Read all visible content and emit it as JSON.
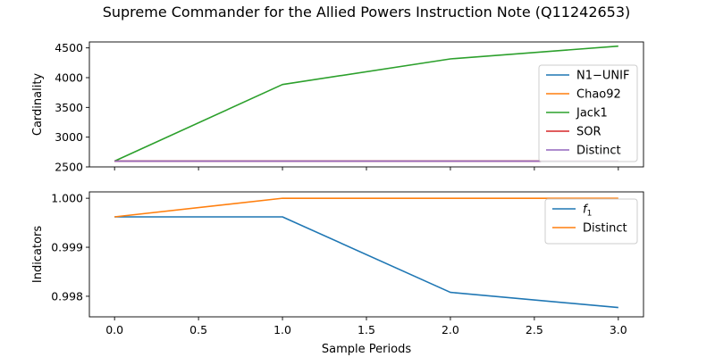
{
  "title": "Supreme Commander for the Allied Powers Instruction Note (Q11242653)",
  "chart_data": [
    {
      "type": "line",
      "ylabel": "Cardinality",
      "xlabel": "",
      "x": [
        0,
        1,
        2,
        3
      ],
      "xlim": [
        -0.15,
        3.15
      ],
      "ylim": [
        2500,
        4600
      ],
      "yticks": [
        2500,
        3000,
        3500,
        4000,
        4500
      ],
      "xticks": [
        0.0,
        0.5,
        1.0,
        1.5,
        2.0,
        2.5,
        3.0
      ],
      "show_xtick_labels": false,
      "legend_position": "center-right",
      "series": [
        {
          "name": "N1−UNIF",
          "color": "#1f77b4",
          "values": [
            2597,
            2597,
            2597,
            2597
          ]
        },
        {
          "name": "Chao92",
          "color": "#ff7f0e",
          "values": [
            2597,
            2597,
            2597,
            2597
          ]
        },
        {
          "name": "Jack1",
          "color": "#2ca02c",
          "values": [
            2597,
            3885,
            4315,
            4530
          ]
        },
        {
          "name": "SOR",
          "color": "#d62728",
          "values": [
            2597,
            2597,
            2597,
            2597
          ]
        },
        {
          "name": "Distinct",
          "color": "#9467bd",
          "values": [
            2597,
            2597,
            2597,
            2597
          ]
        }
      ]
    },
    {
      "type": "line",
      "ylabel": "Indicators",
      "xlabel": "Sample Periods",
      "x": [
        0,
        1,
        2,
        3
      ],
      "xlim": [
        -0.15,
        3.15
      ],
      "ylim": [
        0.99758,
        1.00013
      ],
      "yticks": [
        0.998,
        0.999,
        1.0
      ],
      "ytick_labels": [
        "0.998",
        "0.999",
        "1.000"
      ],
      "xticks": [
        0.0,
        0.5,
        1.0,
        1.5,
        2.0,
        2.5,
        3.0
      ],
      "xtick_labels": [
        "0.0",
        "0.5",
        "1.0",
        "1.5",
        "2.0",
        "2.5",
        "3.0"
      ],
      "show_xtick_labels": true,
      "legend_position": "top-right",
      "series": [
        {
          "name": "f1",
          "color": "#1f77b4",
          "values": [
            0.99962,
            0.99962,
            0.99808,
            0.99777
          ]
        },
        {
          "name": "Distinct",
          "color": "#ff7f0e",
          "values": [
            0.99962,
            1.0,
            1.0,
            1.0
          ]
        }
      ]
    }
  ]
}
